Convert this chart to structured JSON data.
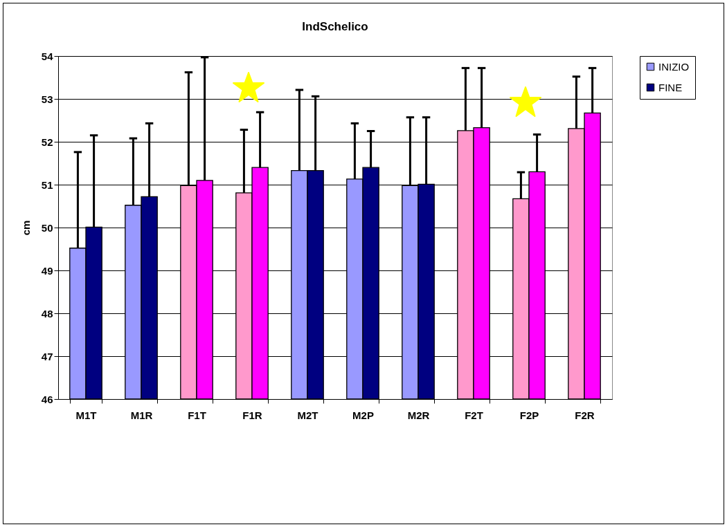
{
  "chart_data": {
    "type": "bar",
    "title": "IndSchelico",
    "ylabel": "cm",
    "categories": [
      "M1T",
      "M1R",
      "F1T",
      "F1R",
      "M2T",
      "M2P",
      "M2R",
      "F2T",
      "F2P",
      "F2R"
    ],
    "series": [
      {
        "name": "INIZIO",
        "color": "#9999ff",
        "colors": [
          "#9999ff",
          "#9999ff",
          "#ff99cc",
          "#ff99cc",
          "#9999ff",
          "#9999ff",
          "#9999ff",
          "#ff99cc",
          "#ff99cc",
          "#ff99cc"
        ],
        "values": [
          49.52,
          50.52,
          50.98,
          50.81,
          51.33,
          51.13,
          50.98,
          52.26,
          50.67,
          52.31
        ],
        "errors": [
          [
            49.52,
            51.76
          ],
          [
            50.52,
            52.08
          ],
          [
            50.98,
            53.62
          ],
          [
            50.81,
            52.28
          ],
          [
            51.33,
            53.21
          ],
          [
            51.13,
            52.43
          ],
          [
            50.98,
            52.57
          ],
          [
            52.26,
            53.72
          ],
          [
            50.67,
            51.29
          ],
          [
            52.31,
            53.52
          ]
        ]
      },
      {
        "name": "FINE",
        "color": "#000080",
        "colors": [
          "#000080",
          "#000080",
          "#ff00ff",
          "#ff00ff",
          "#000080",
          "#000080",
          "#000080",
          "#ff00ff",
          "#ff00ff",
          "#ff00ff"
        ],
        "values": [
          50.01,
          50.72,
          51.1,
          51.4,
          51.33,
          51.4,
          51.01,
          52.33,
          51.3,
          52.67
        ],
        "errors": [
          [
            50.01,
            52.15
          ],
          [
            50.72,
            52.43
          ],
          [
            51.1,
            53.97
          ],
          [
            51.4,
            52.69
          ],
          [
            51.33,
            53.06
          ],
          [
            51.4,
            52.25
          ],
          [
            51.01,
            52.57
          ],
          [
            52.33,
            53.72
          ],
          [
            51.3,
            52.17
          ],
          [
            52.67,
            53.72
          ]
        ]
      }
    ],
    "ylim": [
      46,
      54
    ],
    "yticks": [
      46,
      47,
      48,
      49,
      50,
      51,
      52,
      53,
      54
    ],
    "grid": "y",
    "legend": "right"
  }
}
